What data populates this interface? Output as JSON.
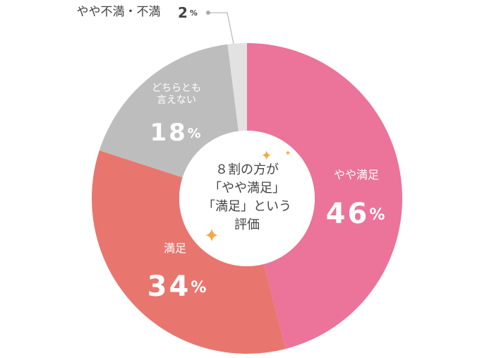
{
  "chart_data": {
    "type": "donut",
    "categories": [
      "やや満足",
      "満足",
      "どちらとも\n言えない",
      "やや不満・不満"
    ],
    "values": [
      46,
      34,
      18,
      2
    ],
    "value_labels": [
      "46%",
      "34%",
      "18%",
      "2%"
    ],
    "colors": [
      "#ec7399",
      "#e8766f",
      "#bdbdbd",
      "#e2e2e2"
    ],
    "center_text": [
      "８割の方が",
      "「やや満足」",
      "「満足」という",
      "評価"
    ]
  }
}
